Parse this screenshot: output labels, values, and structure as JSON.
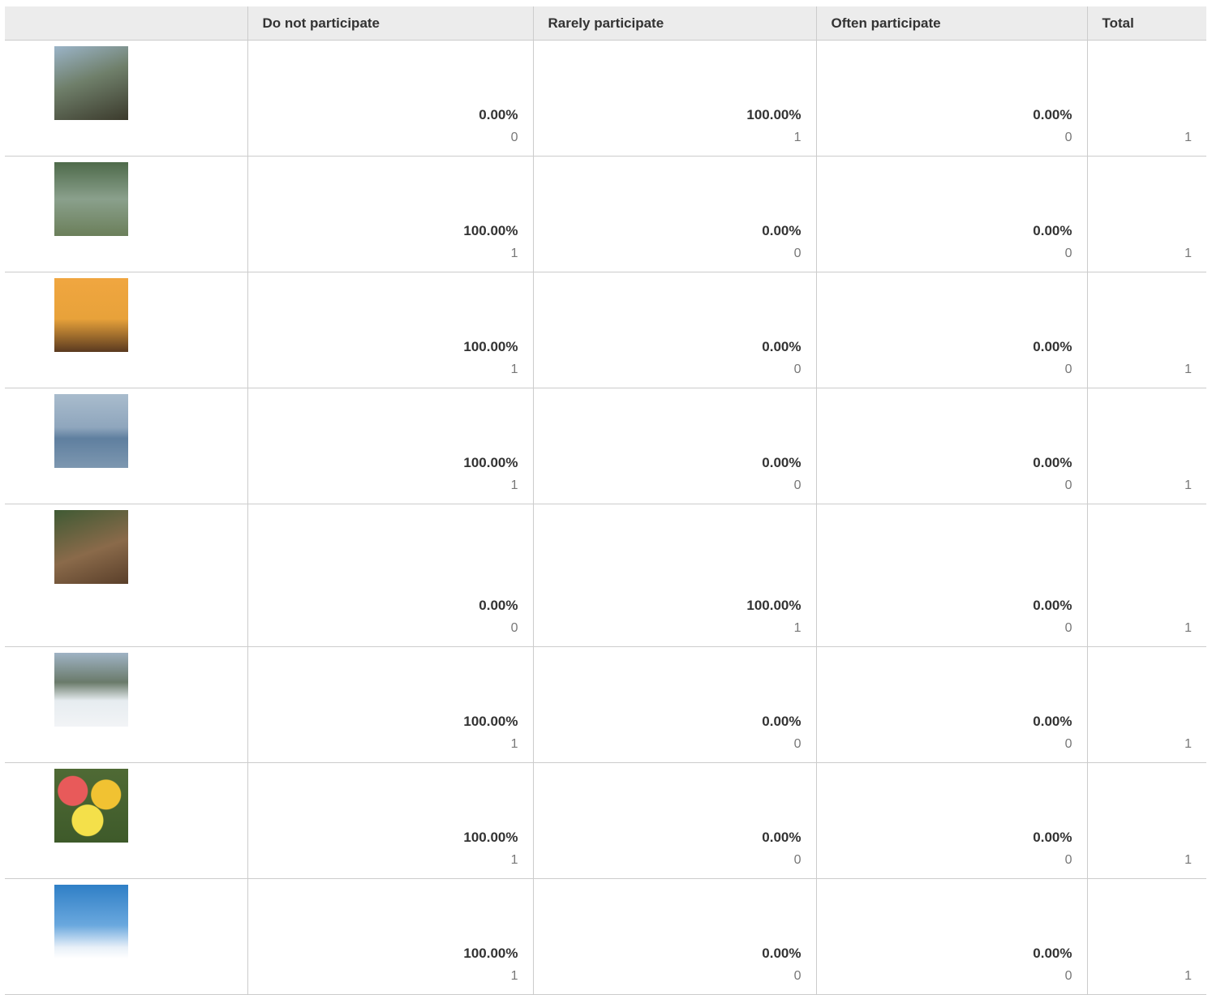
{
  "table": {
    "columns": [
      "Do not participate",
      "Rarely participate",
      "Often participate",
      "Total"
    ],
    "rows": [
      {
        "cells": [
          {
            "percent": "0.00%",
            "count": 0
          },
          {
            "percent": "100.00%",
            "count": 1
          },
          {
            "percent": "0.00%",
            "count": 0
          }
        ],
        "total": 1
      },
      {
        "cells": [
          {
            "percent": "100.00%",
            "count": 1
          },
          {
            "percent": "0.00%",
            "count": 0
          },
          {
            "percent": "0.00%",
            "count": 0
          }
        ],
        "total": 1
      },
      {
        "cells": [
          {
            "percent": "100.00%",
            "count": 1
          },
          {
            "percent": "0.00%",
            "count": 0
          },
          {
            "percent": "0.00%",
            "count": 0
          }
        ],
        "total": 1
      },
      {
        "cells": [
          {
            "percent": "100.00%",
            "count": 1
          },
          {
            "percent": "0.00%",
            "count": 0
          },
          {
            "percent": "0.00%",
            "count": 0
          }
        ],
        "total": 1
      },
      {
        "cells": [
          {
            "percent": "0.00%",
            "count": 0
          },
          {
            "percent": "100.00%",
            "count": 1
          },
          {
            "percent": "0.00%",
            "count": 0
          }
        ],
        "total": 1
      },
      {
        "cells": [
          {
            "percent": "100.00%",
            "count": 1
          },
          {
            "percent": "0.00%",
            "count": 0
          },
          {
            "percent": "0.00%",
            "count": 0
          }
        ],
        "total": 1
      },
      {
        "cells": [
          {
            "percent": "100.00%",
            "count": 1
          },
          {
            "percent": "0.00%",
            "count": 0
          },
          {
            "percent": "0.00%",
            "count": 0
          }
        ],
        "total": 1
      },
      {
        "cells": [
          {
            "percent": "100.00%",
            "count": 1
          },
          {
            "percent": "0.00%",
            "count": 0
          },
          {
            "percent": "0.00%",
            "count": 0
          }
        ],
        "total": 1
      }
    ]
  }
}
